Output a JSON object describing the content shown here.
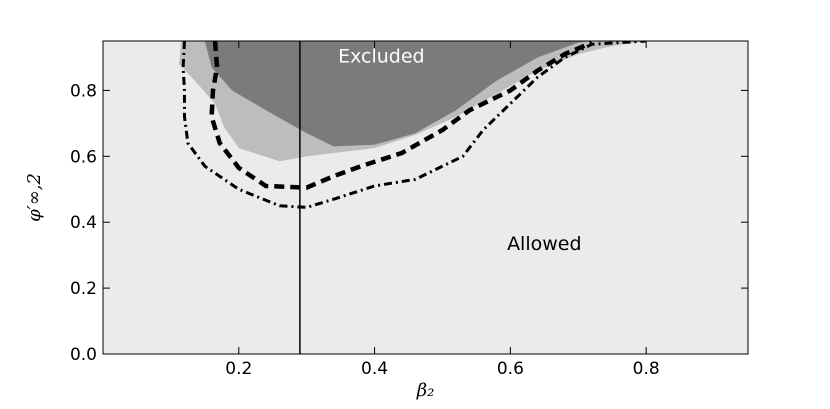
{
  "chart_data": {
    "type": "area",
    "title": "",
    "xlabel": "β₂",
    "ylabel": "φ′∞,2",
    "xlim": [
      0.0,
      0.95
    ],
    "ylim": [
      0.0,
      0.95
    ],
    "xticks": [
      {
        "value": 0.2,
        "label": "0.2"
      },
      {
        "value": 0.4,
        "label": "0.4"
      },
      {
        "value": 0.6,
        "label": "0.6"
      },
      {
        "value": 0.8,
        "label": "0.8"
      }
    ],
    "yticks": [
      {
        "value": 0.0,
        "label": "0.0"
      },
      {
        "value": 0.2,
        "label": "0.2"
      },
      {
        "value": 0.4,
        "label": "0.4"
      },
      {
        "value": 0.6,
        "label": "0.6"
      },
      {
        "value": 0.8,
        "label": "0.8"
      }
    ],
    "grid": false,
    "colors": {
      "allowed": "#ebebeb",
      "light_excluded": "#bdbdbd",
      "dark_excluded": "#7b7b7b",
      "lines": "#000000"
    },
    "regions": [
      {
        "role": "light_excluded",
        "points": [
          [
            0.115,
            0.95
          ],
          [
            0.112,
            0.88
          ],
          [
            0.135,
            0.83
          ],
          [
            0.165,
            0.76
          ],
          [
            0.178,
            0.69
          ],
          [
            0.2,
            0.625
          ],
          [
            0.26,
            0.585
          ],
          [
            0.3,
            0.6
          ],
          [
            0.34,
            0.61
          ],
          [
            0.4,
            0.625
          ],
          [
            0.46,
            0.665
          ],
          [
            0.52,
            0.72
          ],
          [
            0.58,
            0.79
          ],
          [
            0.64,
            0.86
          ],
          [
            0.7,
            0.91
          ],
          [
            0.75,
            0.935
          ],
          [
            0.8,
            0.95
          ]
        ]
      },
      {
        "role": "dark_excluded",
        "points": [
          [
            0.15,
            0.95
          ],
          [
            0.16,
            0.87
          ],
          [
            0.19,
            0.8
          ],
          [
            0.24,
            0.74
          ],
          [
            0.3,
            0.67
          ],
          [
            0.34,
            0.63
          ],
          [
            0.4,
            0.635
          ],
          [
            0.46,
            0.67
          ],
          [
            0.52,
            0.74
          ],
          [
            0.58,
            0.83
          ],
          [
            0.64,
            0.9
          ],
          [
            0.7,
            0.945
          ],
          [
            0.72,
            0.95
          ]
        ]
      }
    ],
    "curves": [
      {
        "style": "dashed",
        "points": [
          [
            0.165,
            0.95
          ],
          [
            0.168,
            0.87
          ],
          [
            0.162,
            0.8
          ],
          [
            0.16,
            0.72
          ],
          [
            0.172,
            0.64
          ],
          [
            0.2,
            0.565
          ],
          [
            0.24,
            0.51
          ],
          [
            0.3,
            0.505
          ],
          [
            0.34,
            0.54
          ],
          [
            0.38,
            0.57
          ],
          [
            0.44,
            0.61
          ],
          [
            0.5,
            0.68
          ],
          [
            0.54,
            0.74
          ],
          [
            0.6,
            0.8
          ],
          [
            0.64,
            0.86
          ],
          [
            0.68,
            0.91
          ],
          [
            0.72,
            0.945
          ]
        ]
      },
      {
        "style": "dashdot",
        "points": [
          [
            0.12,
            0.95
          ],
          [
            0.118,
            0.87
          ],
          [
            0.12,
            0.8
          ],
          [
            0.12,
            0.72
          ],
          [
            0.125,
            0.64
          ],
          [
            0.15,
            0.57
          ],
          [
            0.2,
            0.5
          ],
          [
            0.26,
            0.45
          ],
          [
            0.3,
            0.445
          ],
          [
            0.34,
            0.47
          ],
          [
            0.4,
            0.51
          ],
          [
            0.46,
            0.53
          ],
          [
            0.53,
            0.6
          ],
          [
            0.56,
            0.68
          ],
          [
            0.6,
            0.76
          ],
          [
            0.64,
            0.84
          ],
          [
            0.68,
            0.9
          ],
          [
            0.72,
            0.94
          ],
          [
            0.8,
            0.95
          ]
        ]
      }
    ],
    "vertical_line": {
      "x": 0.29
    },
    "annotations": [
      {
        "text": "Excluded",
        "x": 0.41,
        "y": 0.885,
        "color": "#ffffff"
      },
      {
        "text": "Allowed",
        "x": 0.65,
        "y": 0.315,
        "color": "#000000"
      }
    ]
  }
}
